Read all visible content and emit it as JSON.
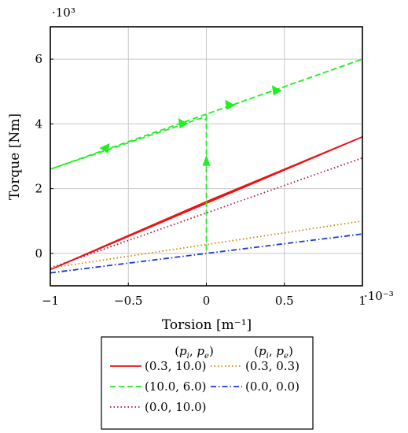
{
  "chart_data": {
    "type": "line",
    "xlabel": "Torsion [m⁻¹]",
    "ylabel": "Torque [Nm]",
    "x_multiplier": "·10⁻³",
    "y_multiplier": "·10³",
    "xlim": [
      -1,
      1
    ],
    "ylim": [
      -1,
      7
    ],
    "x_ticks": [
      -1,
      -0.5,
      0,
      0.5,
      1
    ],
    "x_tick_labels": [
      "−1",
      "−0.5",
      "0",
      "0.5",
      "1"
    ],
    "y_ticks": [
      0,
      2,
      4,
      6
    ],
    "y_tick_labels": [
      "0",
      "2",
      "4",
      "6"
    ],
    "grid": true,
    "legend": {
      "placement": "below",
      "headers": [
        "(p_i, p_e)",
        "(p_i, p_e)"
      ],
      "entries": [
        "(0.3, 10.0)",
        "(10.0, 6.0)",
        "(0.0, 10.0)",
        "(0.3, 0.3)",
        "(0.0, 0.0)"
      ]
    },
    "series": [
      {
        "name": "(0.3, 10.0)",
        "color": "#ee1111",
        "style": "solid",
        "x": [
          -1,
          0,
          1,
          -1
        ],
        "y": [
          -0.5,
          1.6,
          3.6,
          -0.5
        ]
      },
      {
        "name": "(10.0, 6.0)",
        "color": "#22ee22",
        "style": "dashed",
        "x": [
          0,
          0,
          1,
          -1,
          -0.02,
          0
        ],
        "y": [
          0.1,
          4.3,
          6.0,
          2.6,
          4.2,
          4.1
        ]
      },
      {
        "name": "(0.0, 10.0)",
        "color": "#bb1144",
        "style": "dotted",
        "x": [
          -1,
          1
        ],
        "y": [
          -0.45,
          2.95
        ]
      },
      {
        "name": "(0.3, 0.3)",
        "color": "#cc8800",
        "style": "dotted",
        "x": [
          -1,
          1
        ],
        "y": [
          -0.45,
          1.0
        ]
      },
      {
        "name": "(0.0, 0.0)",
        "color": "#1a3ad9",
        "style": "dashdot",
        "x": [
          -1,
          1
        ],
        "y": [
          -0.6,
          0.6
        ]
      }
    ],
    "arrows": [
      {
        "x": -0.65,
        "y": 3.23,
        "dir": "left",
        "color": "#22ee22"
      },
      {
        "x": -0.15,
        "y": 4.03,
        "dir": "right",
        "color": "#22ee22"
      },
      {
        "x": 0.15,
        "y": 4.6,
        "dir": "right",
        "color": "#22ee22"
      },
      {
        "x": 0.45,
        "y": 5.05,
        "dir": "right",
        "color": "#22ee22"
      },
      {
        "x": 0,
        "y": 2.85,
        "dir": "up",
        "color": "#22ee22"
      }
    ]
  }
}
